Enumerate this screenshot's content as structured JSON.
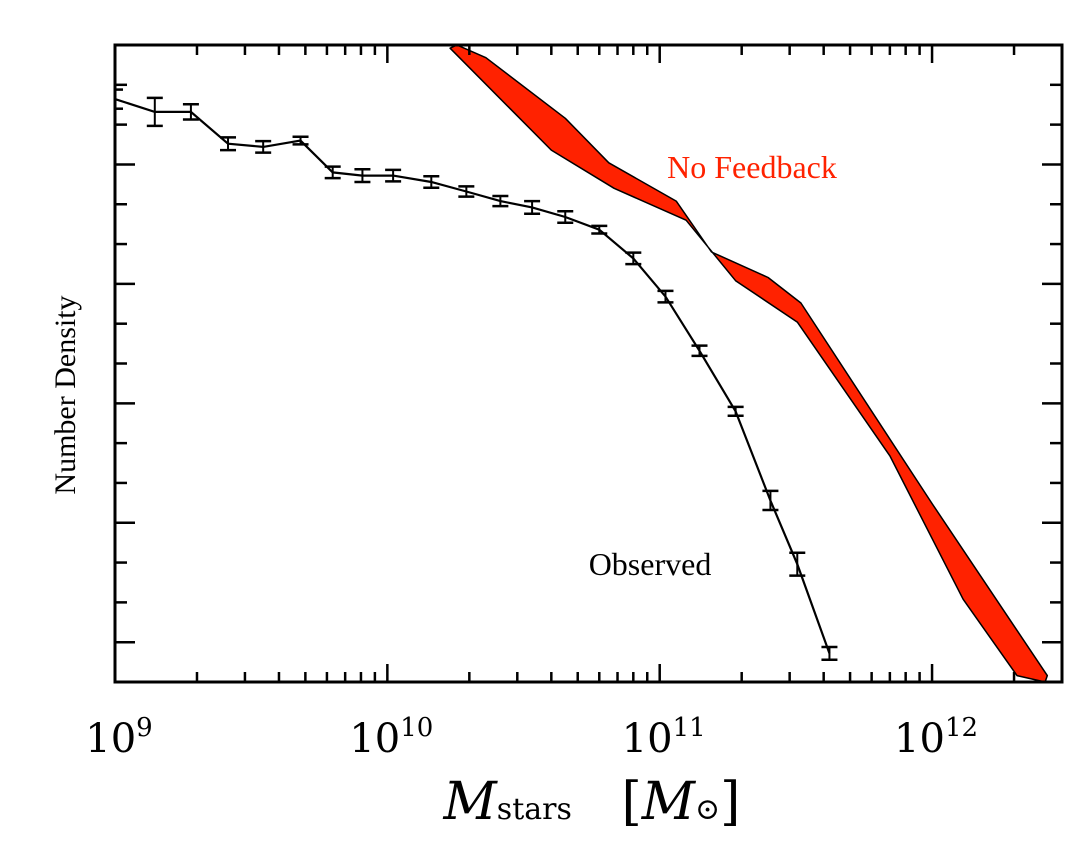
{
  "chart_data": {
    "type": "line",
    "title": "",
    "xlabel_main": "M",
    "xlabel_sub": "stars",
    "xlabel_unit_open": "[",
    "xlabel_unit_main": "M",
    "xlabel_unit_sym": "⊙",
    "xlabel_unit_close": "]",
    "ylabel": "Number Density",
    "xscale": "log",
    "xlim": [
      1000000000.0,
      3000000000000.0
    ],
    "x_ticks": [
      {
        "base": "10",
        "exp": "9",
        "value": 1000000000.0
      },
      {
        "base": "10",
        "exp": "10",
        "value": 10000000000.0
      },
      {
        "base": "10",
        "exp": "11",
        "value": 100000000000.0
      },
      {
        "base": "10",
        "exp": "12",
        "value": 1000000000000.0
      }
    ],
    "y_tick_labels": "none",
    "annotations": [
      {
        "text": "No Feedback",
        "color": "#ff2200"
      },
      {
        "text": "Observed",
        "color": "#000000"
      }
    ],
    "series": [
      {
        "name": "Observed",
        "style": "line-with-errorbars",
        "color": "#000000",
        "points": [
          {
            "x": 1000000000.0,
            "y": 0.915,
            "err": 0.015
          },
          {
            "x": 1400000000.0,
            "y": 0.895,
            "err": 0.022
          },
          {
            "x": 1900000000.0,
            "y": 0.895,
            "err": 0.012
          },
          {
            "x": 2600000000.0,
            "y": 0.845,
            "err": 0.01
          },
          {
            "x": 3500000000.0,
            "y": 0.84,
            "err": 0.009
          },
          {
            "x": 4800000000.0,
            "y": 0.85,
            "err": 0.006
          },
          {
            "x": 6300000000.0,
            "y": 0.8,
            "err": 0.009
          },
          {
            "x": 8100000000.0,
            "y": 0.795,
            "err": 0.01
          },
          {
            "x": 10500000000.0,
            "y": 0.795,
            "err": 0.009
          },
          {
            "x": 14500000000.0,
            "y": 0.785,
            "err": 0.009
          },
          {
            "x": 19500000000.0,
            "y": 0.77,
            "err": 0.008
          },
          {
            "x": 26000000000.0,
            "y": 0.755,
            "err": 0.008
          },
          {
            "x": 34000000000.0,
            "y": 0.745,
            "err": 0.01
          },
          {
            "x": 45000000000.0,
            "y": 0.73,
            "err": 0.009
          },
          {
            "x": 60000000000.0,
            "y": 0.71,
            "err": 0.006
          },
          {
            "x": 80000000000.0,
            "y": 0.665,
            "err": 0.009
          },
          {
            "x": 105000000000.0,
            "y": 0.605,
            "err": 0.009
          },
          {
            "x": 140000000000.0,
            "y": 0.52,
            "err": 0.008
          },
          {
            "x": 190000000000.0,
            "y": 0.425,
            "err": 0.007
          },
          {
            "x": 255000000000.0,
            "y": 0.285,
            "err": 0.015
          },
          {
            "x": 320000000000.0,
            "y": 0.185,
            "err": 0.018
          },
          {
            "x": 420000000000.0,
            "y": 0.045,
            "err": 0.01
          }
        ]
      },
      {
        "name": "No Feedback",
        "style": "band",
        "color": "#ff2200",
        "upper": [
          {
            "x": 18000000000.0,
            "y": 1.0
          },
          {
            "x": 23000000000.0,
            "y": 0.98
          },
          {
            "x": 45000000000.0,
            "y": 0.885
          },
          {
            "x": 65000000000.0,
            "y": 0.815
          },
          {
            "x": 115000000000.0,
            "y": 0.755
          },
          {
            "x": 155000000000.0,
            "y": 0.675
          },
          {
            "x": 250000000000.0,
            "y": 0.635
          },
          {
            "x": 330000000000.0,
            "y": 0.595
          },
          {
            "x": 1000000000000.0,
            "y": 0.28
          },
          {
            "x": 2650000000000.0,
            "y": 0.01
          }
        ],
        "lower": [
          {
            "x": 2600000000000.0,
            "y": 0.0
          },
          {
            "x": 2050000000000.0,
            "y": 0.01
          },
          {
            "x": 1300000000000.0,
            "y": 0.13
          },
          {
            "x": 700000000000.0,
            "y": 0.355
          },
          {
            "x": 320000000000.0,
            "y": 0.565
          },
          {
            "x": 190000000000.0,
            "y": 0.63
          },
          {
            "x": 125000000000.0,
            "y": 0.725
          },
          {
            "x": 68000000000.0,
            "y": 0.775
          },
          {
            "x": 40000000000.0,
            "y": 0.835
          },
          {
            "x": 17000000000.0,
            "y": 0.995
          }
        ]
      }
    ]
  }
}
